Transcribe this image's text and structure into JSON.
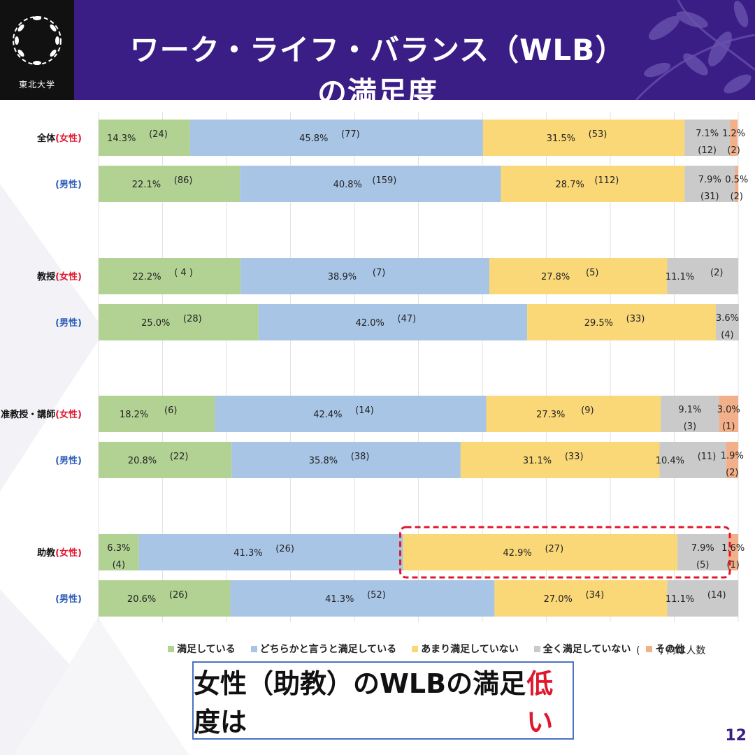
{
  "header": {
    "title": "ワーク・ライフ・バランス（WLB）の満足度",
    "logo_text": "東北大学",
    "background_color": "#3b1d86"
  },
  "chart_data": {
    "type": "bar",
    "orientation": "horizontal",
    "stacked": "percent",
    "xlim": [
      0,
      100
    ],
    "grid": true,
    "legend_position": "bottom",
    "series": [
      {
        "name": "満足している",
        "color": "#b2d293"
      },
      {
        "name": "どちらかと言うと満足している",
        "color": "#a8c5e5"
      },
      {
        "name": "あまり満足していない",
        "color": "#fad877"
      },
      {
        "name": "全く満足していない",
        "color": "#cacaca"
      },
      {
        "name": "その他",
        "color": "#f2b08a"
      }
    ],
    "groups": [
      {
        "label": "全体",
        "rows": [
          {
            "label": "(女性)",
            "values": [
              14.3,
              45.8,
              31.5,
              7.1,
              1.2
            ],
            "counts": [
              24,
              77,
              53,
              12,
              2
            ],
            "pct_labels": [
              "14.3%",
              "45.8%",
              "31.5%",
              "7.1%",
              "1.2%"
            ],
            "count_labels": [
              "(24)",
              "(77)",
              "(53)",
              "(12)",
              "(2)"
            ]
          },
          {
            "label": "(男性)",
            "values": [
              22.1,
              40.8,
              28.7,
              7.9,
              0.5
            ],
            "counts": [
              86,
              159,
              112,
              31,
              2
            ],
            "pct_labels": [
              "22.1%",
              "40.8%",
              "28.7%",
              "7.9%",
              "0.5%"
            ],
            "count_labels": [
              "(86)",
              "(159)",
              "(112)",
              "(31)",
              "(2)"
            ]
          }
        ]
      },
      {
        "label": "教授",
        "rows": [
          {
            "label": "(女性)",
            "values": [
              22.2,
              38.9,
              27.8,
              11.1,
              0
            ],
            "counts": [
              4,
              7,
              5,
              2,
              0
            ],
            "pct_labels": [
              "22.2%",
              "38.9%",
              "27.8%",
              "11.1%",
              ""
            ],
            "count_labels": [
              "( 4 )",
              "(7)",
              "(5)",
              "(2)",
              ""
            ]
          },
          {
            "label": "(男性)",
            "values": [
              25.0,
              42.0,
              29.5,
              3.6,
              0
            ],
            "counts": [
              28,
              47,
              33,
              4,
              0
            ],
            "pct_labels": [
              "25.0%",
              "42.0%",
              "29.5%",
              "3.6%",
              ""
            ],
            "count_labels": [
              "(28)",
              "(47)",
              "(33)",
              "(4)",
              ""
            ]
          }
        ]
      },
      {
        "label": "准教授・講師",
        "rows": [
          {
            "label": "(女性)",
            "values": [
              18.2,
              42.4,
              27.3,
              9.1,
              3.0
            ],
            "counts": [
              6,
              14,
              9,
              3,
              1
            ],
            "pct_labels": [
              "18.2%",
              "42.4%",
              "27.3%",
              "9.1%",
              "3.0%"
            ],
            "count_labels": [
              "(6)",
              "(14)",
              "(9)",
              "(3)",
              "(1)"
            ]
          },
          {
            "label": "(男性)",
            "values": [
              20.8,
              35.8,
              31.1,
              10.4,
              1.9
            ],
            "counts": [
              22,
              38,
              33,
              11,
              2
            ],
            "pct_labels": [
              "20.8%",
              "35.8%",
              "31.1%",
              "10.4%",
              "1.9%"
            ],
            "count_labels": [
              "(22)",
              "(38)",
              "(33)",
              "(11)",
              "(2)"
            ]
          }
        ]
      },
      {
        "label": "助教",
        "rows": [
          {
            "label": "(女性)",
            "values": [
              6.3,
              41.3,
              42.9,
              7.9,
              1.6
            ],
            "counts": [
              4,
              26,
              27,
              5,
              1
            ],
            "pct_labels": [
              "6.3%",
              "41.3%",
              "42.9%",
              "7.9%",
              "1.6%"
            ],
            "count_labels": [
              "(4)",
              "(26)",
              "(27)",
              "(5)",
              "(1)"
            ]
          },
          {
            "label": "(男性)",
            "values": [
              20.6,
              41.3,
              27.0,
              11.1,
              0
            ],
            "counts": [
              26,
              52,
              34,
              14,
              0
            ],
            "pct_labels": [
              "20.6%",
              "41.3%",
              "27.0%",
              "11.1%",
              ""
            ],
            "count_labels": [
              "(26)",
              "(52)",
              "(34)",
              "(14)",
              ""
            ]
          }
        ]
      }
    ],
    "highlight": {
      "group": "助教",
      "row": "(女性)",
      "segment": "あまり満足していない",
      "color": "#e0182d"
    },
    "female_label_color": "#e0182d",
    "male_label_color": "#2e5db8"
  },
  "legend_note": "(　　) 内は人数",
  "conclusion": {
    "text_main": "女性（助教）のWLBの満足度は",
    "text_emphasis": "低い"
  },
  "page_number": "12"
}
